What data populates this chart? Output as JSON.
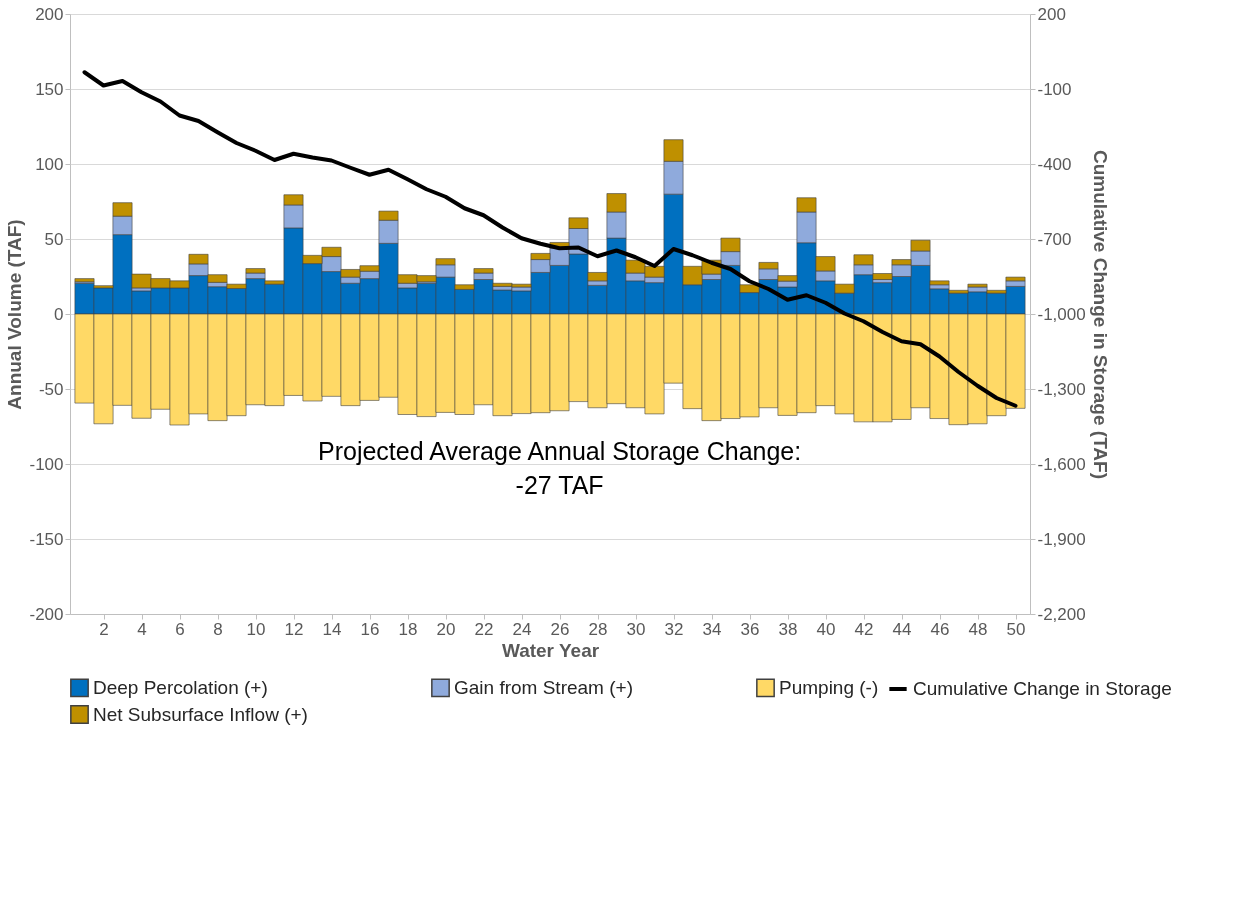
{
  "chart_data": {
    "type": "bar",
    "stacked": true,
    "xlabel": "Water Year",
    "ylabel": "Annual Volume (TAF)",
    "y2label": "Cumulative Change in Storage (TAF)",
    "x": [
      1,
      2,
      3,
      4,
      5,
      6,
      7,
      8,
      9,
      10,
      11,
      12,
      13,
      14,
      15,
      16,
      17,
      18,
      19,
      20,
      21,
      22,
      23,
      24,
      25,
      26,
      27,
      28,
      29,
      30,
      31,
      32,
      33,
      34,
      35,
      36,
      37,
      38,
      39,
      40,
      41,
      42,
      43,
      44,
      45,
      46,
      47,
      48,
      49,
      50
    ],
    "xlim": [
      0.5,
      50.5
    ],
    "xticks": [
      2,
      4,
      6,
      8,
      10,
      12,
      14,
      16,
      18,
      20,
      22,
      24,
      26,
      28,
      30,
      32,
      34,
      36,
      38,
      40,
      42,
      44,
      46,
      48,
      50
    ],
    "ylim": [
      -200,
      200
    ],
    "yticks": [
      -200,
      -150,
      -100,
      -50,
      0,
      50,
      100,
      150,
      200
    ],
    "y2lim": [
      -2200,
      200
    ],
    "y2ticks": [
      {
        "value": -2200,
        "label": "-2,200"
      },
      {
        "value": -1900,
        "label": "-1,900"
      },
      {
        "value": -1600,
        "label": "-1,600"
      },
      {
        "value": -1300,
        "label": "-1,300"
      },
      {
        "value": -1000,
        "label": "-1,000"
      },
      -700,
      -400,
      -100,
      200
    ],
    "grid": "y",
    "legend": "bottom",
    "series": [
      {
        "name": "Deep Percolation (+)",
        "color": "#0070c0",
        "values": [
          20.5,
          17.4,
          52.9,
          15.4,
          17.4,
          17.4,
          25.6,
          18.2,
          17,
          23.6,
          19.9,
          57.4,
          33.6,
          28.3,
          20.5,
          23.6,
          47.1,
          17.4,
          20.5,
          24.6,
          16.4,
          23,
          16,
          15.4,
          27.7,
          32.4,
          40,
          19.1,
          50.6,
          22.1,
          20.9,
          79.9,
          19.5,
          23,
          32.4,
          14.3,
          23,
          18,
          47.5,
          22.1,
          13.9,
          26.2,
          20.9,
          25,
          32.4,
          16.8,
          13.9,
          14.8,
          13.9,
          18.4
        ]
      },
      {
        "name": "Gain from Stream (+)",
        "color": "#8faadc",
        "values": [
          1,
          null,
          12.3,
          2,
          null,
          null,
          7.8,
          2.9,
          null,
          3.7,
          null,
          15.3,
          null,
          10,
          4.1,
          4.9,
          15.4,
          3.1,
          1,
          8.2,
          null,
          4.3,
          2.4,
          2.6,
          8.6,
          11.7,
          17,
          3,
          17.4,
          5.2,
          3.7,
          21.9,
          null,
          3.6,
          9.2,
          null,
          7.1,
          3.9,
          20.5,
          6.6,
          null,
          6.6,
          2.1,
          7.8,
          9.6,
          2.7,
          null,
          3.2,
          null,
          3.7
        ]
      },
      {
        "name": "Pumping (-)",
        "color": "#ffd966",
        "values": [
          -59.4,
          -73.2,
          -60.9,
          -69.5,
          -63.5,
          -74,
          -66.6,
          -71.1,
          -67.8,
          -60.5,
          -61.1,
          -54.3,
          -58,
          -54.9,
          -61.1,
          -57.6,
          -55.5,
          -67,
          -68.4,
          -65.6,
          -67,
          -60.5,
          -67.8,
          -66.4,
          -65.8,
          -64.5,
          -58.4,
          -62.5,
          -59.8,
          -62.5,
          -66.6,
          -46.1,
          -63.1,
          -71.1,
          -69.7,
          -68.6,
          -62.5,
          -67.6,
          -65.8,
          -61.1,
          -66.6,
          -71.9,
          -71.9,
          -70.3,
          -62.5,
          -69.7,
          -73.8,
          -73.2,
          -67.8,
          -62.9
        ]
      },
      {
        "name": "Net Subsurface Inflow (+)",
        "color": "#bf9000",
        "values": [
          2.1,
          1.5,
          9,
          9.2,
          6.2,
          4.7,
          6.4,
          5.1,
          2.9,
          3,
          2.2,
          6.8,
          5.5,
          6.2,
          5.1,
          3.7,
          6.1,
          5.7,
          4.1,
          4.1,
          3.1,
          3,
          2.1,
          1.9,
          4.1,
          3.6,
          7.1,
          5.6,
          12.3,
          8.6,
          7.2,
          14.4,
          12.3,
          9.3,
          9,
          5.2,
          4.3,
          3.7,
          9.5,
          9.6,
          6,
          6.7,
          4,
          3.5,
          7.2,
          2.6,
          1.9,
          1.9,
          1.9,
          2.5
        ]
      },
      {
        "name": "Cumulative Change in Storage",
        "type": "line",
        "axis": "y2",
        "color": "#000000",
        "values": [
          -33,
          -86,
          -68,
          -113,
          -150,
          -206,
          -228,
          -273,
          -316,
          -347,
          -384,
          -359,
          -374,
          -386,
          -415,
          -443,
          -423,
          -461,
          -501,
          -531,
          -577,
          -605,
          -654,
          -697,
          -719,
          -737,
          -734,
          -769,
          -746,
          -773,
          -808,
          -740,
          -765,
          -795,
          -820,
          -869,
          -900,
          -943,
          -925,
          -955,
          -998,
          -1029,
          -1072,
          -1109,
          -1121,
          -1170,
          -1232,
          -1287,
          -1336,
          -1367
        ]
      }
    ],
    "annotations": [
      "Projected Average Annual Storage Change:\n-27 TAF"
    ]
  }
}
